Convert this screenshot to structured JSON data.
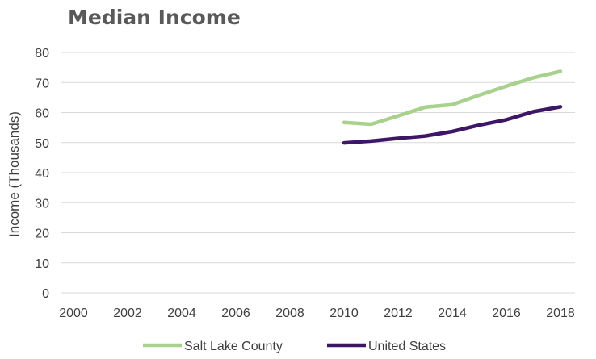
{
  "chart_data": {
    "type": "line",
    "title": "Median Income",
    "xlabel": "",
    "ylabel": "Income (Thousands)",
    "x": [
      2000,
      2001,
      2002,
      2003,
      2004,
      2005,
      2006,
      2007,
      2008,
      2009,
      2010,
      2011,
      2012,
      2013,
      2014,
      2015,
      2016,
      2017,
      2018
    ],
    "x_ticks": [
      "2000",
      "2002",
      "2004",
      "2006",
      "2008",
      "2010",
      "2012",
      "2014",
      "2016",
      "2018"
    ],
    "y_ticks": [
      "0",
      "10",
      "20",
      "30",
      "40",
      "50",
      "60",
      "70",
      "80"
    ],
    "xlim": [
      2000,
      2018
    ],
    "ylim": [
      0,
      80
    ],
    "grid": "horizontal",
    "legend_position": "bottom",
    "series": [
      {
        "name": "Salt Lake County",
        "color": "#a9d18e",
        "x": [
          2010,
          2011,
          2012,
          2013,
          2014,
          2015,
          2016,
          2017,
          2018
        ],
        "values": [
          56.7,
          56.1,
          58.9,
          61.8,
          62.6,
          65.8,
          68.8,
          71.6,
          73.7
        ]
      },
      {
        "name": "United States",
        "color": "#3d1766",
        "x": [
          2010,
          2011,
          2012,
          2013,
          2014,
          2015,
          2016,
          2017,
          2018
        ],
        "values": [
          49.9,
          50.5,
          51.4,
          52.2,
          53.7,
          55.8,
          57.6,
          60.3,
          61.9
        ]
      }
    ]
  }
}
